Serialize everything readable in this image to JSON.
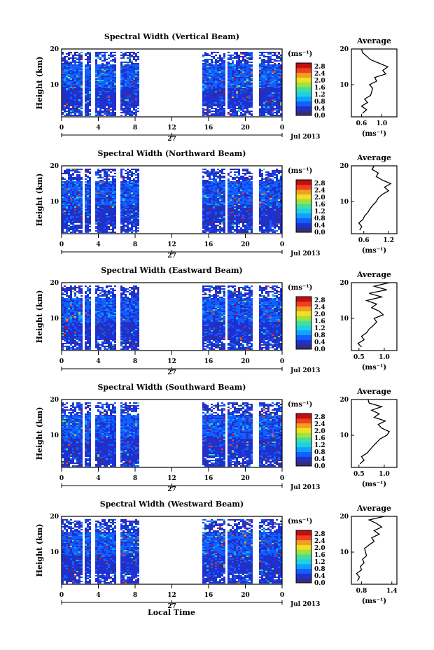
{
  "figure": {
    "bottom_xlabel": "Local Time",
    "month_year": "Jul 2013",
    "day_label": "27",
    "colorbar": {
      "unit": "(ms⁻¹)",
      "ticks": [
        "2.8",
        "2.4",
        "2.0",
        "1.6",
        "1.2",
        "0.8",
        "0.4",
        "0.0"
      ],
      "range": [
        0.0,
        3.0
      ],
      "colors": [
        "#30307a",
        "#2030d0",
        "#1060ff",
        "#10a0ff",
        "#20d0e0",
        "#40e0a0",
        "#a0e040",
        "#f0e020",
        "#f0a020",
        "#f04020",
        "#c01010"
      ]
    }
  },
  "chart_data": [
    {
      "type": "heatmap",
      "title": "Spectral Width (Vertical Beam)",
      "xlabel": "",
      "ylabel": "Height (km)",
      "xlim": [
        0,
        24
      ],
      "ylim": [
        1,
        20
      ],
      "xticks": [
        "0",
        "4",
        "8",
        "12",
        "16",
        "20",
        "0"
      ],
      "yticks": [
        "20",
        "10"
      ],
      "data_gaps_hours": [
        [
          2.1,
          2.5
        ],
        [
          3.0,
          3.6
        ],
        [
          5.8,
          6.2
        ],
        [
          8.4,
          15.3
        ],
        [
          17.6,
          18.0
        ],
        [
          20.8,
          21.3
        ]
      ],
      "profile": {
        "title": "Average",
        "xlabel": "(ms⁻¹)",
        "xticks": [
          "0.6",
          "1.0"
        ],
        "xlim": [
          0.4,
          1.3
        ],
        "yticks": [
          "20",
          "10"
        ],
        "height_km": [
          2,
          3,
          4,
          5,
          6,
          7,
          8,
          9,
          10,
          11,
          12,
          13,
          14,
          15,
          16,
          17,
          18,
          19,
          20
        ],
        "width_ms": [
          0.62,
          0.7,
          0.6,
          0.72,
          0.66,
          0.78,
          0.8,
          0.82,
          0.76,
          0.9,
          0.86,
          1.08,
          1.02,
          1.12,
          0.95,
          0.78,
          0.7,
          0.62,
          0.6
        ]
      }
    },
    {
      "type": "heatmap",
      "title": "Spectral Width (Northward Beam)",
      "xlabel": "",
      "ylabel": "Height (km)",
      "xlim": [
        0,
        24
      ],
      "ylim": [
        1,
        20
      ],
      "xticks": [
        "0",
        "4",
        "8",
        "12",
        "16",
        "20",
        "0"
      ],
      "yticks": [
        "20",
        "10"
      ],
      "data_gaps_hours": [
        [
          2.1,
          2.5
        ],
        [
          3.0,
          3.6
        ],
        [
          5.8,
          6.2
        ],
        [
          8.4,
          15.3
        ],
        [
          17.6,
          18.0
        ],
        [
          20.8,
          21.3
        ]
      ],
      "profile": {
        "title": "Average",
        "xlabel": "(ms⁻¹)",
        "xticks": [
          "0.6",
          "1.2"
        ],
        "xlim": [
          0.3,
          1.4
        ],
        "yticks": [
          "20",
          "10"
        ],
        "height_km": [
          2,
          3,
          4,
          5,
          6,
          7,
          8,
          9,
          10,
          11,
          12,
          13,
          14,
          15,
          16,
          17,
          18,
          19,
          20
        ],
        "width_ms": [
          0.5,
          0.55,
          0.48,
          0.58,
          0.62,
          0.7,
          0.75,
          0.82,
          0.9,
          0.95,
          1.05,
          1.2,
          1.1,
          1.25,
          1.05,
          0.9,
          0.95,
          0.8,
          0.85
        ]
      }
    },
    {
      "type": "heatmap",
      "title": "Spectral Width (Eastward Beam)",
      "xlabel": "",
      "ylabel": "Height (km)",
      "xlim": [
        0,
        24
      ],
      "ylim": [
        1,
        20
      ],
      "xticks": [
        "0",
        "4",
        "8",
        "12",
        "16",
        "20",
        "0"
      ],
      "yticks": [
        "20",
        "10"
      ],
      "data_gaps_hours": [
        [
          2.1,
          2.5
        ],
        [
          3.0,
          3.6
        ],
        [
          5.8,
          6.2
        ],
        [
          8.4,
          15.3
        ],
        [
          17.6,
          18.0
        ],
        [
          20.8,
          21.3
        ]
      ],
      "profile": {
        "title": "Average",
        "xlabel": "(ms⁻¹)",
        "xticks": [
          "0.5",
          "1.0"
        ],
        "xlim": [
          0.35,
          1.25
        ],
        "yticks": [
          "20",
          "10"
        ],
        "height_km": [
          2,
          3,
          4,
          5,
          6,
          7,
          8,
          9,
          10,
          11,
          12,
          13,
          14,
          15,
          16,
          17,
          18,
          19,
          20
        ],
        "width_ms": [
          0.55,
          0.48,
          0.6,
          0.55,
          0.65,
          0.7,
          0.78,
          0.85,
          0.8,
          0.98,
          0.9,
          0.75,
          0.85,
          0.65,
          0.95,
          0.7,
          1.05,
          0.8,
          1.1
        ]
      }
    },
    {
      "type": "heatmap",
      "title": "Spectral Width (Southward Beam)",
      "xlabel": "",
      "ylabel": "Height (km)",
      "xlim": [
        0,
        24
      ],
      "ylim": [
        1,
        20
      ],
      "xticks": [
        "0",
        "4",
        "8",
        "12",
        "16",
        "20",
        "0"
      ],
      "yticks": [
        "20",
        "10"
      ],
      "data_gaps_hours": [
        [
          2.1,
          2.5
        ],
        [
          3.0,
          3.6
        ],
        [
          5.8,
          6.2
        ],
        [
          8.4,
          15.3
        ],
        [
          17.6,
          18.0
        ],
        [
          20.8,
          21.3
        ]
      ],
      "profile": {
        "title": "Average",
        "xlabel": "(ms⁻¹)",
        "xticks": [
          "0.5",
          "1.0"
        ],
        "xlim": [
          0.35,
          1.25
        ],
        "yticks": [
          "20",
          "10"
        ],
        "height_km": [
          2,
          3,
          4,
          5,
          6,
          7,
          8,
          9,
          10,
          11,
          12,
          13,
          14,
          15,
          16,
          17,
          18,
          19,
          20
        ],
        "width_ms": [
          0.52,
          0.6,
          0.55,
          0.66,
          0.72,
          0.78,
          0.85,
          0.92,
          1.05,
          1.1,
          0.95,
          0.88,
          1.02,
          0.8,
          0.9,
          0.75,
          0.95,
          0.7,
          0.68
        ]
      }
    },
    {
      "type": "heatmap",
      "title": "Spectral Width (Westward Beam)",
      "xlabel": "",
      "ylabel": "Height (km)",
      "xlim": [
        0,
        24
      ],
      "ylim": [
        1,
        20
      ],
      "xticks": [
        "0",
        "4",
        "8",
        "12",
        "16",
        "20",
        "0"
      ],
      "yticks": [
        "20",
        "10"
      ],
      "data_gaps_hours": [
        [
          2.1,
          2.5
        ],
        [
          3.0,
          3.6
        ],
        [
          5.8,
          6.2
        ],
        [
          8.4,
          15.3
        ],
        [
          17.6,
          18.0
        ],
        [
          20.8,
          21.3
        ]
      ],
      "profile": {
        "title": "Average",
        "xlabel": "(ms⁻¹)",
        "xticks": [
          "0.8",
          "1.4"
        ],
        "xlim": [
          0.6,
          1.5
        ],
        "yticks": [
          "20",
          "10"
        ],
        "height_km": [
          2,
          3,
          4,
          5,
          6,
          7,
          8,
          9,
          10,
          11,
          12,
          13,
          14,
          15,
          16,
          17,
          18,
          19,
          20
        ],
        "width_ms": [
          0.72,
          0.76,
          0.7,
          0.8,
          0.78,
          0.85,
          0.82,
          0.9,
          0.88,
          0.86,
          0.95,
          1.05,
          1.0,
          1.15,
          1.05,
          1.2,
          1.1,
          0.95,
          1.25
        ]
      }
    }
  ]
}
